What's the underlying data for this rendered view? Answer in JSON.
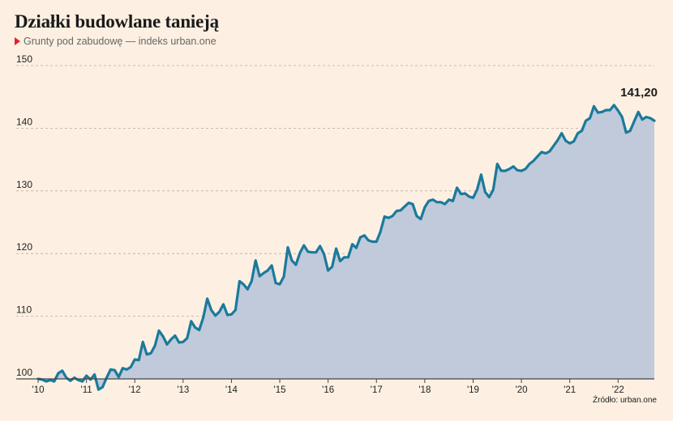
{
  "header": {
    "title": "Działki budowlane tanieją",
    "subtitle": "Grunty pod zabudowę — indeks urban.one"
  },
  "footer": {
    "source": "Źródło: urban.one"
  },
  "colors": {
    "background": "#fdf0e2",
    "line": "#1b7a9b",
    "area": "#c0cadb",
    "marker": "#e4202a"
  },
  "chart_data": {
    "type": "area",
    "title": "Działki budowlane tanieją",
    "subtitle": "Grunty pod zabudowę — indeks urban.one",
    "xlabel": "",
    "ylabel": "",
    "ylim": [
      100,
      150
    ],
    "yticks": [
      100,
      110,
      120,
      130,
      140,
      150
    ],
    "xlim": [
      2010.0,
      2022.75
    ],
    "xticks": [
      {
        "x": 2010,
        "label": "'10"
      },
      {
        "x": 2011,
        "label": "'11"
      },
      {
        "x": 2012,
        "label": "'12"
      },
      {
        "x": 2013,
        "label": "'13"
      },
      {
        "x": 2014,
        "label": "'14"
      },
      {
        "x": 2015,
        "label": "'15"
      },
      {
        "x": 2016,
        "label": "'16"
      },
      {
        "x": 2017,
        "label": "'17"
      },
      {
        "x": 2018,
        "label": "'18"
      },
      {
        "x": 2019,
        "label": "'19"
      },
      {
        "x": 2020,
        "label": "'20"
      },
      {
        "x": 2021,
        "label": "'21"
      },
      {
        "x": 2022,
        "label": "'22"
      }
    ],
    "grid": "horizontal dashed",
    "end_label": "141,20",
    "x": [
      2010.0,
      2010.083,
      2010.167,
      2010.25,
      2010.333,
      2010.417,
      2010.5,
      2010.583,
      2010.667,
      2010.75,
      2010.833,
      2010.917,
      2011.0,
      2011.083,
      2011.167,
      2011.25,
      2011.333,
      2011.417,
      2011.5,
      2011.583,
      2011.667,
      2011.75,
      2011.833,
      2011.917,
      2012.0,
      2012.083,
      2012.167,
      2012.25,
      2012.333,
      2012.417,
      2012.5,
      2012.583,
      2012.667,
      2012.75,
      2012.833,
      2012.917,
      2013.0,
      2013.083,
      2013.167,
      2013.25,
      2013.333,
      2013.417,
      2013.5,
      2013.583,
      2013.667,
      2013.75,
      2013.833,
      2013.917,
      2014.0,
      2014.083,
      2014.167,
      2014.25,
      2014.333,
      2014.417,
      2014.5,
      2014.583,
      2014.667,
      2014.75,
      2014.833,
      2014.917,
      2015.0,
      2015.083,
      2015.167,
      2015.25,
      2015.333,
      2015.417,
      2015.5,
      2015.583,
      2015.667,
      2015.75,
      2015.833,
      2015.917,
      2016.0,
      2016.083,
      2016.167,
      2016.25,
      2016.333,
      2016.417,
      2016.5,
      2016.583,
      2016.667,
      2016.75,
      2016.833,
      2016.917,
      2017.0,
      2017.083,
      2017.167,
      2017.25,
      2017.333,
      2017.417,
      2017.5,
      2017.583,
      2017.667,
      2017.75,
      2017.833,
      2017.917,
      2018.0,
      2018.083,
      2018.167,
      2018.25,
      2018.333,
      2018.417,
      2018.5,
      2018.583,
      2018.667,
      2018.75,
      2018.833,
      2018.917,
      2019.0,
      2019.083,
      2019.167,
      2019.25,
      2019.333,
      2019.417,
      2019.5,
      2019.583,
      2019.667,
      2019.75,
      2019.833,
      2019.917,
      2020.0,
      2020.083,
      2020.167,
      2020.25,
      2020.333,
      2020.417,
      2020.5,
      2020.583,
      2020.667,
      2020.75,
      2020.833,
      2020.917,
      2021.0,
      2021.083,
      2021.167,
      2021.25,
      2021.333,
      2021.417,
      2021.5,
      2021.583,
      2021.667,
      2021.75,
      2021.833,
      2021.917,
      2022.0,
      2022.083,
      2022.167,
      2022.25,
      2022.333,
      2022.417,
      2022.5,
      2022.583,
      2022.667,
      2022.75
    ],
    "series": [
      {
        "values": [
          100.0,
          99.9,
          99.6,
          99.8,
          99.6,
          100.9,
          101.3,
          100.2,
          99.7,
          100.2,
          99.8,
          99.6,
          100.5,
          99.9,
          100.7,
          98.3,
          98.7,
          100.2,
          101.5,
          101.4,
          100.3,
          101.7,
          101.5,
          101.9,
          103.1,
          103.0,
          105.9,
          103.9,
          104.1,
          105.3,
          107.7,
          106.8,
          105.5,
          106.3,
          106.9,
          105.8,
          105.9,
          106.5,
          109.2,
          108.2,
          107.8,
          109.8,
          112.8,
          111.0,
          110.1,
          110.7,
          111.9,
          110.2,
          110.3,
          111.0,
          115.6,
          115.1,
          114.3,
          115.6,
          118.9,
          116.4,
          116.9,
          117.3,
          118.1,
          115.3,
          115.1,
          116.3,
          121.0,
          118.9,
          118.2,
          120.1,
          121.3,
          120.3,
          120.2,
          120.2,
          121.2,
          119.9,
          117.3,
          117.9,
          120.8,
          118.8,
          119.4,
          119.4,
          121.5,
          120.9,
          122.6,
          122.9,
          122.1,
          121.9,
          121.9,
          123.5,
          125.9,
          125.7,
          126.0,
          126.8,
          126.9,
          127.5,
          128.1,
          127.9,
          126.0,
          125.5,
          127.4,
          128.4,
          128.6,
          128.2,
          128.2,
          127.9,
          128.6,
          128.4,
          130.5,
          129.5,
          129.6,
          129.1,
          128.9,
          130.2,
          132.6,
          129.8,
          129.0,
          130.2,
          134.3,
          133.2,
          133.2,
          133.5,
          133.9,
          133.3,
          133.2,
          133.5,
          134.3,
          134.8,
          135.5,
          136.2,
          136.0,
          136.3,
          137.2,
          138.1,
          139.2,
          138.0,
          137.6,
          137.9,
          139.2,
          139.6,
          141.2,
          141.6,
          143.5,
          142.5,
          142.6,
          142.9,
          142.9,
          143.7,
          142.8,
          141.8,
          139.3,
          139.6,
          141.1,
          142.6,
          141.4,
          141.8,
          141.6,
          141.2
        ]
      }
    ]
  }
}
